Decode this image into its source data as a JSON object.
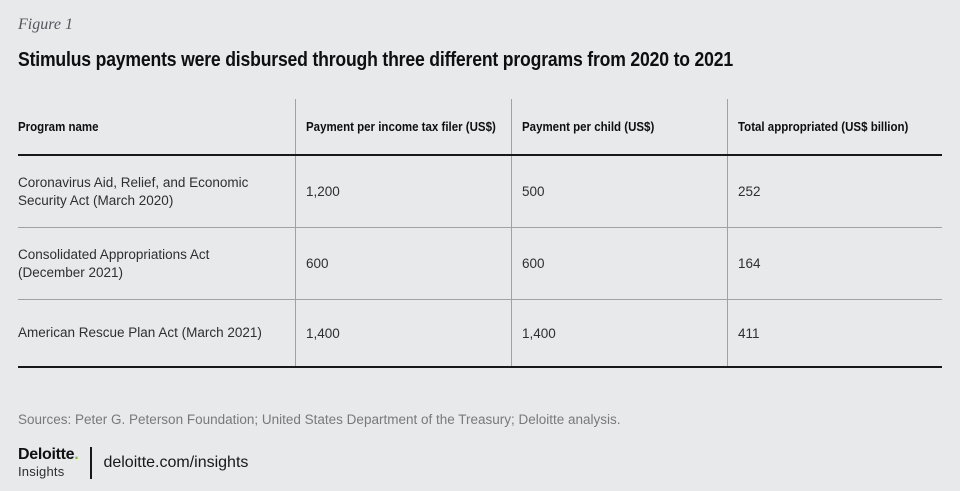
{
  "figure_label": "Figure 1",
  "title": "Stimulus payments were disbursed through three different programs from 2020 to 2021",
  "table": {
    "columns": [
      "Program name",
      "Payment per income tax filer (US$)",
      "Payment per child (US$)",
      "Total appropriated (US$ billion)"
    ],
    "rows": [
      {
        "program": "Coronavirus Aid, Relief, and Economic Security Act (March 2020)",
        "values": [
          "1,200",
          "500",
          "252"
        ]
      },
      {
        "program": "Consolidated Appropriations Act (December 2021)",
        "values": [
          "600",
          "600",
          "164"
        ]
      },
      {
        "program": "American Rescue Plan Act (March 2021)",
        "values": [
          "1,400",
          "1,400",
          "411"
        ]
      }
    ]
  },
  "chart_data": {
    "type": "table",
    "title": "Stimulus payments were disbursed through three different programs from 2020 to 2021",
    "columns": [
      "Program name",
      "Payment per income tax filer (US$)",
      "Payment per child (US$)",
      "Total appropriated (US$ billion)"
    ],
    "rows": [
      [
        "Coronavirus Aid, Relief, and Economic Security Act (March 2020)",
        1200,
        500,
        252
      ],
      [
        "Consolidated Appropriations Act (December 2021)",
        600,
        600,
        164
      ],
      [
        "American Rescue Plan Act (March 2021)",
        1400,
        1400,
        411
      ]
    ]
  },
  "sources": "Sources: Peter G. Peterson Foundation; United States Department of the Treasury; Deloitte analysis.",
  "footer": {
    "brand_name": "Deloitte",
    "brand_dot": ".",
    "brand_sub": "Insights",
    "url": "deloitte.com/insights"
  },
  "colors": {
    "background": "#e8e9eb",
    "accent_green": "#86bc25",
    "dark_line": "#17181a",
    "light_line": "#a0a2a5",
    "muted_text": "#77797b"
  }
}
